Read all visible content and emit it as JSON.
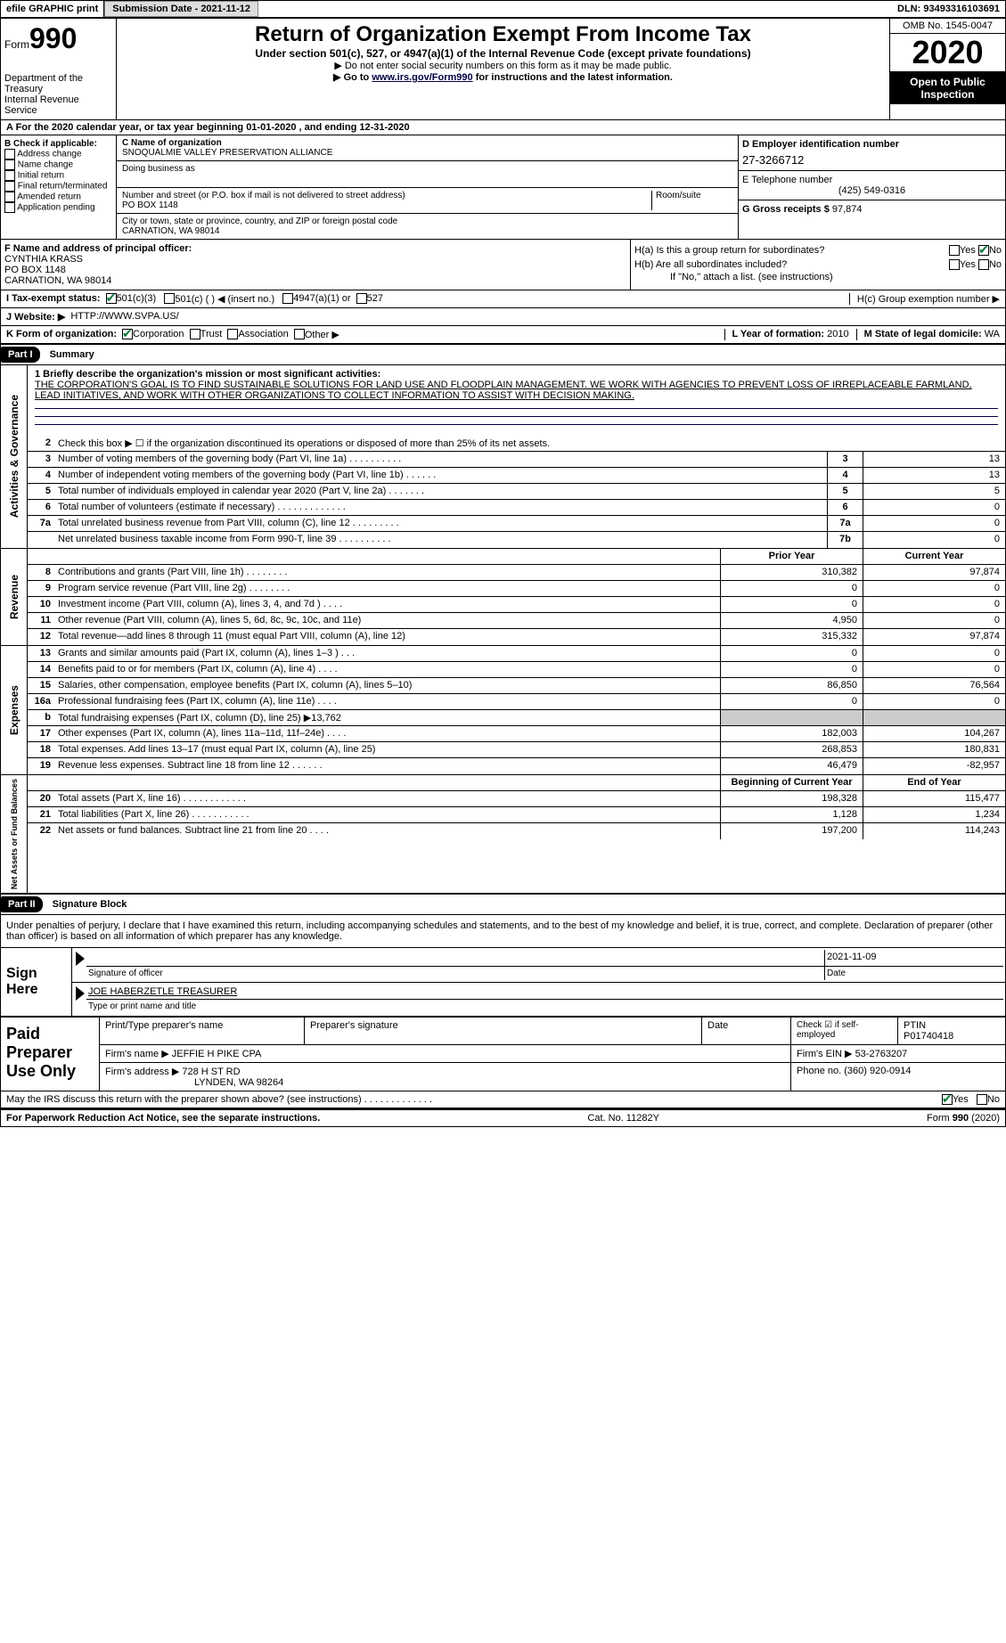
{
  "topbar": {
    "efile": "efile GRAPHIC print",
    "submission_label": "Submission Date - 2021-11-12",
    "dln": "DLN: 93493316103691"
  },
  "header": {
    "form_label": "Form",
    "form_number": "990",
    "dept": "Department of the Treasury",
    "irs": "Internal Revenue Service",
    "title": "Return of Organization Exempt From Income Tax",
    "subtitle": "Under section 501(c), 527, or 4947(a)(1) of the Internal Revenue Code (except private foundations)",
    "note1": "Do not enter social security numbers on this form as it may be made public.",
    "note2_prefix": "Go to ",
    "note2_link": "www.irs.gov/Form990",
    "note2_suffix": " for instructions and the latest information.",
    "omb": "OMB No. 1545-0047",
    "year": "2020",
    "inspection": "Open to Public Inspection"
  },
  "period": {
    "text": "A For the 2020 calendar year, or tax year beginning 01-01-2020     , and ending 12-31-2020"
  },
  "sectionB": {
    "label": "B Check if applicable:",
    "items": [
      "Address change",
      "Name change",
      "Initial return",
      "Final return/terminated",
      "Amended return",
      "Application pending"
    ]
  },
  "sectionC": {
    "label": "C Name of organization",
    "name": "SNOQUALMIE VALLEY PRESERVATION ALLIANCE",
    "dba_label": "Doing business as",
    "addr_label": "Number and street (or P.O. box if mail is not delivered to street address)",
    "room_label": "Room/suite",
    "addr": "PO BOX 1148",
    "city_label": "City or town, state or province, country, and ZIP or foreign postal code",
    "city": "CARNATION, WA   98014"
  },
  "sectionD": {
    "label": "D Employer identification number",
    "value": "27-3266712"
  },
  "sectionE": {
    "label": "E Telephone number",
    "value": "(425) 549-0316"
  },
  "sectionG": {
    "label": "G Gross receipts $",
    "value": "97,874"
  },
  "sectionF": {
    "label": "F  Name and address of principal officer:",
    "name": "CYNTHIA KRASS",
    "addr1": "PO BOX 1148",
    "addr2": "CARNATION, WA   98014"
  },
  "sectionH": {
    "ha": "H(a)  Is this a group return for subordinates?",
    "hb": "H(b)  Are all subordinates included?",
    "hb_note": "If \"No,\" attach a list. (see instructions)",
    "hc": "H(c)  Group exemption number ▶",
    "yes": "Yes",
    "no": "No"
  },
  "sectionI": {
    "label": "I   Tax-exempt status:",
    "opts": [
      "501(c)(3)",
      "501(c) (  ) ◀ (insert no.)",
      "4947(a)(1) or",
      "527"
    ]
  },
  "sectionJ": {
    "label": "J   Website: ▶",
    "value": "HTTP://WWW.SVPA.US/"
  },
  "sectionK": {
    "label": "K Form of organization:",
    "opts": [
      "Corporation",
      "Trust",
      "Association",
      "Other ▶"
    ]
  },
  "sectionL": {
    "label": "L Year of formation:",
    "value": "2010"
  },
  "sectionM": {
    "label": "M State of legal domicile:",
    "value": "WA"
  },
  "part1": {
    "label": "Part I",
    "title": "Summary",
    "mission_label": "1  Briefly describe the organization's mission or most significant activities:",
    "mission": "THE CORPORATION'S GOAL IS TO FIND SUSTAINABLE SOLUTIONS FOR LAND USE AND FLOODPLAIN MANAGEMENT. WE WORK WITH AGENCIES TO PREVENT LOSS OF IRREPLACEABLE FARMLAND, LEAD INITIATIVES, AND WORK WITH OTHER ORGANIZATIONS TO COLLECT INFORMATION TO ASSIST WITH DECISION MAKING."
  },
  "governance_side": "Activities & Governance",
  "revenue_side": "Revenue",
  "expenses_side": "Expenses",
  "net_side": "Net Assets or Fund Balances",
  "lines_gov": [
    {
      "n": "2",
      "d": "Check this box ▶ ☐ if the organization discontinued its operations or disposed of more than 25% of its net assets."
    },
    {
      "n": "3",
      "d": "Number of voting members of the governing body (Part VI, line 1a)   .    .    .    .    .    .    .    .    .    .",
      "nc": "3",
      "v": "13"
    },
    {
      "n": "4",
      "d": "Number of independent voting members of the governing body (Part VI, line 1b)    .    .    .    .    .    .",
      "nc": "4",
      "v": "13"
    },
    {
      "n": "5",
      "d": "Total number of individuals employed in calendar year 2020 (Part V, line 2a)   .    .    .    .    .    .    .",
      "nc": "5",
      "v": "5"
    },
    {
      "n": "6",
      "d": "Total number of volunteers (estimate if necessary)    .    .    .    .    .    .    .    .    .    .    .    .    .",
      "nc": "6",
      "v": "0"
    },
    {
      "n": "7a",
      "d": "Total unrelated business revenue from Part VIII, column (C), line 12   .    .    .    .    .    .    .    .    .",
      "nc": "7a",
      "v": "0"
    },
    {
      "n": "",
      "d": "Net unrelated business taxable income from Form 990-T, line 39    .    .    .    .    .    .    .    .    .    .",
      "nc": "7b",
      "v": "0"
    }
  ],
  "header_cols": {
    "prior": "Prior Year",
    "current": "Current Year"
  },
  "lines_rev": [
    {
      "n": "8",
      "d": "Contributions and grants (Part VIII, line 1h)   .    .    .    .    .    .    .    .",
      "p": "310,382",
      "c": "97,874"
    },
    {
      "n": "9",
      "d": "Program service revenue (Part VIII, line 2g)    .    .    .    .    .    .    .    .",
      "p": "0",
      "c": "0"
    },
    {
      "n": "10",
      "d": "Investment income (Part VIII, column (A), lines 3, 4, and 7d )   .    .    .    .",
      "p": "0",
      "c": "0"
    },
    {
      "n": "11",
      "d": "Other revenue (Part VIII, column (A), lines 5, 6d, 8c, 9c, 10c, and 11e)",
      "p": "4,950",
      "c": "0"
    },
    {
      "n": "12",
      "d": "Total revenue—add lines 8 through 11 (must equal Part VIII, column (A), line 12)",
      "p": "315,332",
      "c": "97,874"
    }
  ],
  "lines_exp": [
    {
      "n": "13",
      "d": "Grants and similar amounts paid (Part IX, column (A), lines 1–3 )   .    .    .",
      "p": "0",
      "c": "0"
    },
    {
      "n": "14",
      "d": "Benefits paid to or for members (Part IX, column (A), line 4)   .    .    .    .",
      "p": "0",
      "c": "0"
    },
    {
      "n": "15",
      "d": "Salaries, other compensation, employee benefits (Part IX, column (A), lines 5–10)",
      "p": "86,850",
      "c": "76,564"
    },
    {
      "n": "16a",
      "d": "Professional fundraising fees (Part IX, column (A), line 11e)   .    .    .    .",
      "p": "0",
      "c": "0"
    },
    {
      "n": "b",
      "d": "Total fundraising expenses (Part IX, column (D), line 25) ▶13,762",
      "p": "",
      "c": "",
      "shaded": true
    },
    {
      "n": "17",
      "d": "Other expenses (Part IX, column (A), lines 11a–11d, 11f–24e)   .    .    .    .",
      "p": "182,003",
      "c": "104,267"
    },
    {
      "n": "18",
      "d": "Total expenses. Add lines 13–17 (must equal Part IX, column (A), line 25)",
      "p": "268,853",
      "c": "180,831"
    },
    {
      "n": "19",
      "d": "Revenue less expenses. Subtract line 18 from line 12   .    .    .    .    .    .",
      "p": "46,479",
      "c": "-82,957"
    }
  ],
  "header_cols2": {
    "prior": "Beginning of Current Year",
    "current": "End of Year"
  },
  "lines_net": [
    {
      "n": "20",
      "d": "Total assets (Part X, line 16)   .    .    .    .    .    .    .    .    .    .    .    .",
      "p": "198,328",
      "c": "115,477"
    },
    {
      "n": "21",
      "d": "Total liabilities (Part X, line 26)    .    .    .    .    .    .    .    .    .    .    .",
      "p": "1,128",
      "c": "1,234"
    },
    {
      "n": "22",
      "d": "Net assets or fund balances. Subtract line 21 from line 20    .    .    .    .",
      "p": "197,200",
      "c": "114,243"
    }
  ],
  "part2": {
    "label": "Part II",
    "title": "Signature Block",
    "declaration": "Under penalties of perjury, I declare that I have examined this return, including accompanying schedules and statements, and to the best of my knowledge and belief, it is true, correct, and complete. Declaration of preparer (other than officer) is based on all information of which preparer has any knowledge."
  },
  "sign": {
    "here": "Sign Here",
    "sig_label": "Signature of officer",
    "date_label": "Date",
    "date": "2021-11-09",
    "name": "JOE HABERZETLE  TREASURER",
    "name_label": "Type or print name and title"
  },
  "preparer": {
    "label": "Paid Preparer Use Only",
    "print_label": "Print/Type preparer's name",
    "sig_label": "Preparer's signature",
    "date_label": "Date",
    "check_label": "Check ☑ if self-employed",
    "ptin_label": "PTIN",
    "ptin": "P01740418",
    "firm_name_label": "Firm's name    ▶",
    "firm_name": "JEFFIE H PIKE CPA",
    "firm_ein_label": "Firm's EIN ▶",
    "firm_ein": "53-2763207",
    "firm_addr_label": "Firm's address ▶",
    "firm_addr": "728 H ST RD",
    "firm_city": "LYNDEN, WA   98264",
    "phone_label": "Phone no.",
    "phone": "(360) 920-0914"
  },
  "discuss": {
    "text": "May the IRS discuss this return with the preparer shown above? (see instructions)    .    .    .    .    .    .    .    .    .    .    .    .    .",
    "yes": "Yes",
    "no": "No"
  },
  "footer": {
    "left": "For Paperwork Reduction Act Notice, see the separate instructions.",
    "center": "Cat. No. 11282Y",
    "right_prefix": "Form ",
    "right_form": "990",
    "right_suffix": " (2020)"
  }
}
